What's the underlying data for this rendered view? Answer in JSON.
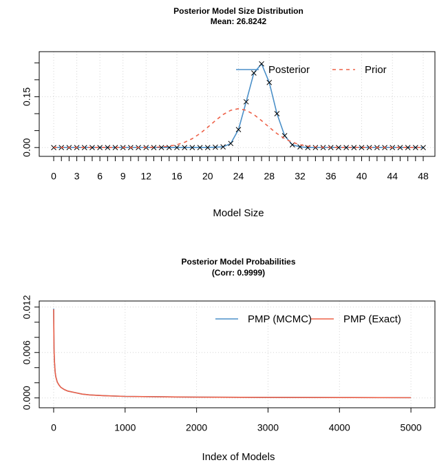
{
  "chart_data": [
    {
      "type": "line",
      "title": "Posterior Model Size Distribution",
      "subtitle": "Mean: 26.8242",
      "xlabel": "Model Size",
      "x": [
        0,
        1,
        2,
        3,
        4,
        5,
        6,
        7,
        8,
        9,
        10,
        11,
        12,
        13,
        14,
        15,
        16,
        17,
        18,
        19,
        20,
        21,
        22,
        23,
        24,
        25,
        26,
        27,
        28,
        29,
        30,
        31,
        32,
        33,
        34,
        35,
        36,
        37,
        38,
        39,
        40,
        41,
        42,
        43,
        44,
        45,
        46,
        47,
        48
      ],
      "xlim": [
        -1.88,
        49.52
      ],
      "ylim": [
        -0.026,
        0.283
      ],
      "xticks": [
        0,
        3,
        6,
        9,
        12,
        16,
        20,
        24,
        28,
        32,
        36,
        40,
        44,
        48
      ],
      "xticks_unlabeled": [
        1,
        2,
        4,
        5,
        7,
        8,
        10,
        11,
        13,
        14,
        15,
        17,
        18,
        19,
        21,
        22,
        23,
        25,
        26,
        27,
        29,
        30,
        31,
        33,
        34,
        35,
        37,
        38,
        39,
        41,
        42,
        43,
        45,
        46,
        47
      ],
      "yticks": [
        {
          "value": 0,
          "label": "0.00"
        },
        0.15
      ],
      "yticks_unlabeled": [
        0.05,
        0.1,
        0.2,
        0.25
      ],
      "grid": true,
      "legend": "topright",
      "series": [
        {
          "name": "Posterior",
          "color": "#4a8fc8",
          "marker": "x",
          "values": [
            0,
            0,
            0,
            0,
            0,
            0,
            0,
            0,
            0,
            0,
            0,
            0,
            0,
            0,
            0,
            0,
            0,
            0,
            0,
            0,
            0,
            0.001,
            0.002,
            0.012,
            0.053,
            0.135,
            0.22,
            0.247,
            0.192,
            0.1,
            0.035,
            0.008,
            0.002,
            0,
            0,
            0,
            0,
            0,
            0,
            0,
            0,
            0,
            0,
            0,
            0,
            0,
            0,
            0,
            0
          ]
        },
        {
          "name": "Prior",
          "color": "#ee6047",
          "dash": true,
          "values": [
            0,
            0,
            0,
            0,
            0,
            0,
            0,
            0,
            0,
            0,
            0,
            0.0001,
            0.0003,
            0.0008,
            0.0018,
            0.0041,
            0.0083,
            0.0154,
            0.0263,
            0.0413,
            0.0597,
            0.0794,
            0.0973,
            0.11,
            0.1146,
            0.11,
            0.0973,
            0.0794,
            0.0597,
            0.0413,
            0.0263,
            0.0154,
            0.0083,
            0.0041,
            0.0018,
            0.0008,
            0.0003,
            0.0001,
            0,
            0,
            0,
            0,
            0,
            0,
            0,
            0,
            0,
            0,
            0
          ]
        }
      ]
    },
    {
      "type": "line",
      "title": "Posterior Model Probabilities",
      "subtitle": "(Corr: 0.9999)",
      "xlabel": "Index of Models",
      "x": [
        0,
        5,
        10,
        20,
        30,
        50,
        75,
        100,
        150,
        200,
        300,
        400,
        500,
        700,
        1000,
        1500,
        2000,
        3000,
        4000,
        5000
      ],
      "xlim": [
        -202,
        5336
      ],
      "ylim": [
        -0.0013,
        0.0128
      ],
      "xticks": [
        0,
        1000,
        2000,
        3000,
        4000,
        5000
      ],
      "yticks": [
        {
          "value": 0,
          "label": "0.000"
        },
        0.006,
        0.012
      ],
      "yticks_unlabeled": [
        0.002,
        0.004,
        0.008,
        0.01
      ],
      "grid": true,
      "legend": "topright",
      "series": [
        {
          "name": "PMP (MCMC)",
          "color": "#4a8fc8",
          "values": [
            0.0118,
            0.0066,
            0.005,
            0.0035,
            0.0028,
            0.0021,
            0.0017,
            0.0014,
            0.0011,
            0.0009,
            0.0007,
            0.0005,
            0.0004,
            0.0003,
            0.0002,
            0.00015,
            0.0001,
            7e-05,
            5e-05,
            3e-05
          ]
        },
        {
          "name": "PMP (Exact)",
          "color": "#ee6047",
          "values": [
            0.0117,
            0.0065,
            0.005,
            0.0035,
            0.0028,
            0.0021,
            0.0017,
            0.0014,
            0.0011,
            0.0009,
            0.0007,
            0.0005,
            0.0004,
            0.0003,
            0.0002,
            0.00015,
            0.0001,
            7e-05,
            5e-05,
            3e-05
          ]
        }
      ]
    }
  ]
}
